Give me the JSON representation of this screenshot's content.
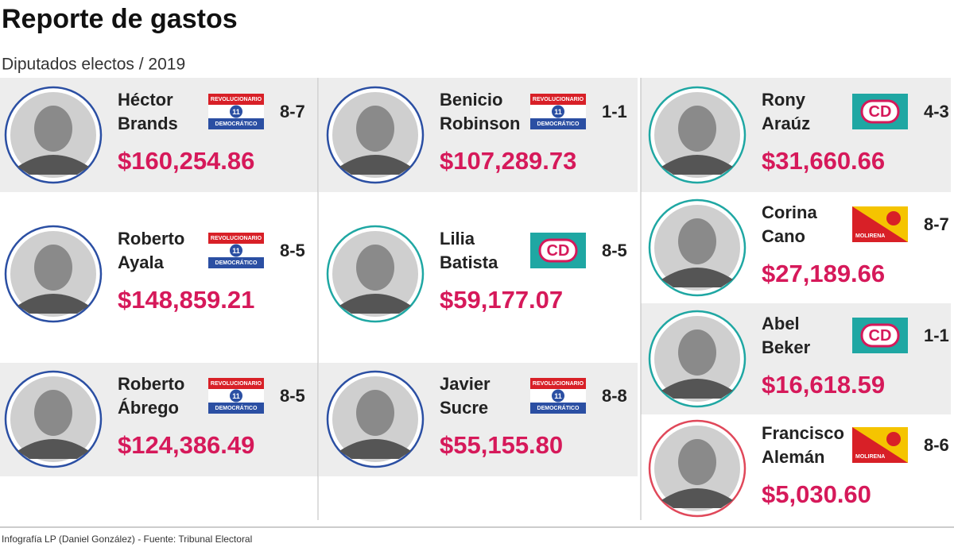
{
  "header": {
    "title": "Reporte de gastos",
    "subtitle": "Diputados electos / 2019"
  },
  "columns": [
    [
      {
        "name": [
          "Héctor",
          "Brands"
        ],
        "circuit": "8-7",
        "amount": "$160,254.86",
        "logo": {
          "kind": "prd",
          "color": "#2b4fa3",
          "texts": [
            "REVOLUCIONARIO",
            "11",
            "DEMOCRÁTICO"
          ]
        }
      },
      {
        "name": [
          "Roberto",
          "Ayala"
        ],
        "circuit": "8-5",
        "amount": "$148,859.21",
        "logo": {
          "kind": "prd",
          "color": "#2b4fa3",
          "texts": [
            "REVOLUCIONARIO",
            "11",
            "DEMOCRÁTICO"
          ]
        }
      },
      {
        "name": [
          "Roberto",
          "Ábrego"
        ],
        "circuit": "8-5",
        "amount": "$124,386.49",
        "logo": {
          "kind": "prd",
          "color": "#2b4fa3",
          "texts": [
            "REVOLUCIONARIO",
            "11",
            "DEMOCRÁTICO"
          ]
        }
      }
    ],
    [
      {
        "name": [
          "Benicio",
          "Robinson"
        ],
        "circuit": "1-1",
        "amount": "$107,289.73",
        "logo": {
          "kind": "prd",
          "color": "#2b4fa3",
          "texts": [
            "REVOLUCIONARIO",
            "11",
            "DEMOCRÁTICO"
          ]
        }
      },
      {
        "name": [
          "Lilia",
          "Batista"
        ],
        "circuit": "8-5",
        "amount": "$59,177.07",
        "logo": {
          "kind": "cd",
          "color": "#1fa7a3",
          "texts": [
            "CD"
          ]
        }
      },
      {
        "name": [
          "Javier",
          "Sucre"
        ],
        "circuit": "8-8",
        "amount": "$55,155.80",
        "logo": {
          "kind": "prd",
          "color": "#2b4fa3",
          "texts": [
            "REVOLUCIONARIO",
            "11",
            "DEMOCRÁTICO"
          ]
        }
      }
    ],
    [
      {
        "name": [
          "Rony",
          "Araúz"
        ],
        "circuit": "4-3",
        "amount": "$31,660.66",
        "logo": {
          "kind": "cd",
          "color": "#1fa7a3",
          "texts": [
            "CD"
          ]
        }
      },
      {
        "name": [
          "Corina",
          "Cano"
        ],
        "circuit": "8-7",
        "amount": "$27,189.66",
        "logo": {
          "kind": "molirena",
          "color": "#1fa7a3",
          "texts": [
            "MOLIRENA"
          ]
        }
      },
      {
        "name": [
          "Abel",
          "Beker"
        ],
        "circuit": "1-1",
        "amount": "$16,618.59",
        "logo": {
          "kind": "cd",
          "color": "#1fa7a3",
          "texts": [
            "CD"
          ]
        }
      },
      {
        "name": [
          "Francisco",
          "Alemán"
        ],
        "circuit": "8-6",
        "amount": "$5,030.60",
        "logo": {
          "kind": "molirena",
          "color": "#e0485a",
          "texts": [
            "MOLIRENA"
          ]
        }
      }
    ]
  ],
  "footer": "Infografía LP (Daniel González) - Fuente: Tribunal Electoral"
}
